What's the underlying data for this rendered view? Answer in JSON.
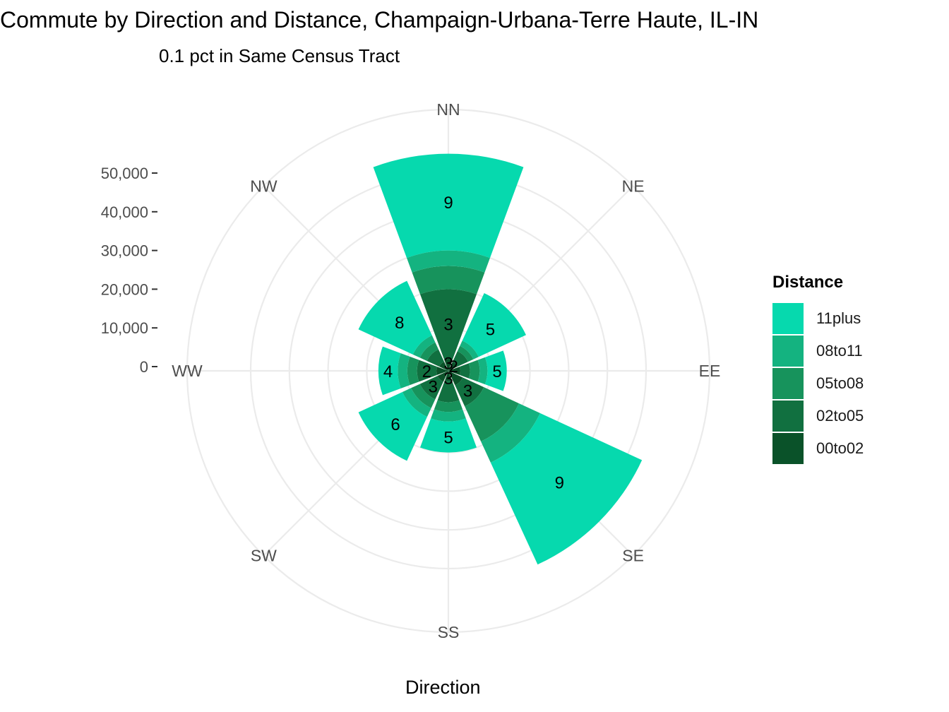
{
  "chart_data": {
    "type": "polar-stacked-bar",
    "title": "Commute by Direction and Distance, Champaign-Urbana-Terre Haute, IL-IN",
    "subtitle": "0.1 pct in Same Census Tract",
    "xlabel": "Direction",
    "categories": [
      "NN",
      "NE",
      "EE",
      "SE",
      "SS",
      "SW",
      "WW",
      "NW"
    ],
    "radial_ticks": [
      0,
      10000,
      20000,
      30000,
      40000,
      50000
    ],
    "radial_tick_labels": [
      "0",
      "10,000",
      "20,000",
      "30,000",
      "40,000",
      "50,000"
    ],
    "rlim": [
      0,
      62000
    ],
    "legend_title": "Distance",
    "legend_position": "right",
    "series": [
      {
        "name": "00to02",
        "color": "#0a5229",
        "values": [
          2000,
          1500,
          2000,
          3000,
          1500,
          2000,
          2000,
          1500
        ]
      },
      {
        "name": "02to05",
        "color": "#117040",
        "values": [
          18000,
          3000,
          2500,
          6000,
          5500,
          5000,
          5000,
          3500
        ]
      },
      {
        "name": "05to08",
        "color": "#17935c",
        "values": [
          6000,
          1500,
          2500,
          10000,
          2500,
          2500,
          2500,
          2000
        ]
      },
      {
        "name": "08to11",
        "color": "#14b380",
        "values": [
          4000,
          1500,
          2000,
          6000,
          2500,
          2500,
          2500,
          2000
        ]
      },
      {
        "name": "11plus",
        "color": "#06d9ae",
        "values": [
          25000,
          13500,
          5000,
          29000,
          8000,
          12500,
          5000,
          15500
        ]
      }
    ],
    "labels": [
      {
        "series": "11plus",
        "values": [
          "9",
          "5",
          "5",
          "9",
          "5",
          "6",
          "4",
          "8"
        ]
      },
      {
        "series": "02to05",
        "values": [
          "3",
          "",
          "",
          "3",
          "",
          "3",
          "2",
          ""
        ]
      },
      {
        "series": "00to02",
        "values": [
          "3",
          "2",
          "",
          "",
          "3",
          "",
          "",
          ""
        ]
      }
    ]
  }
}
